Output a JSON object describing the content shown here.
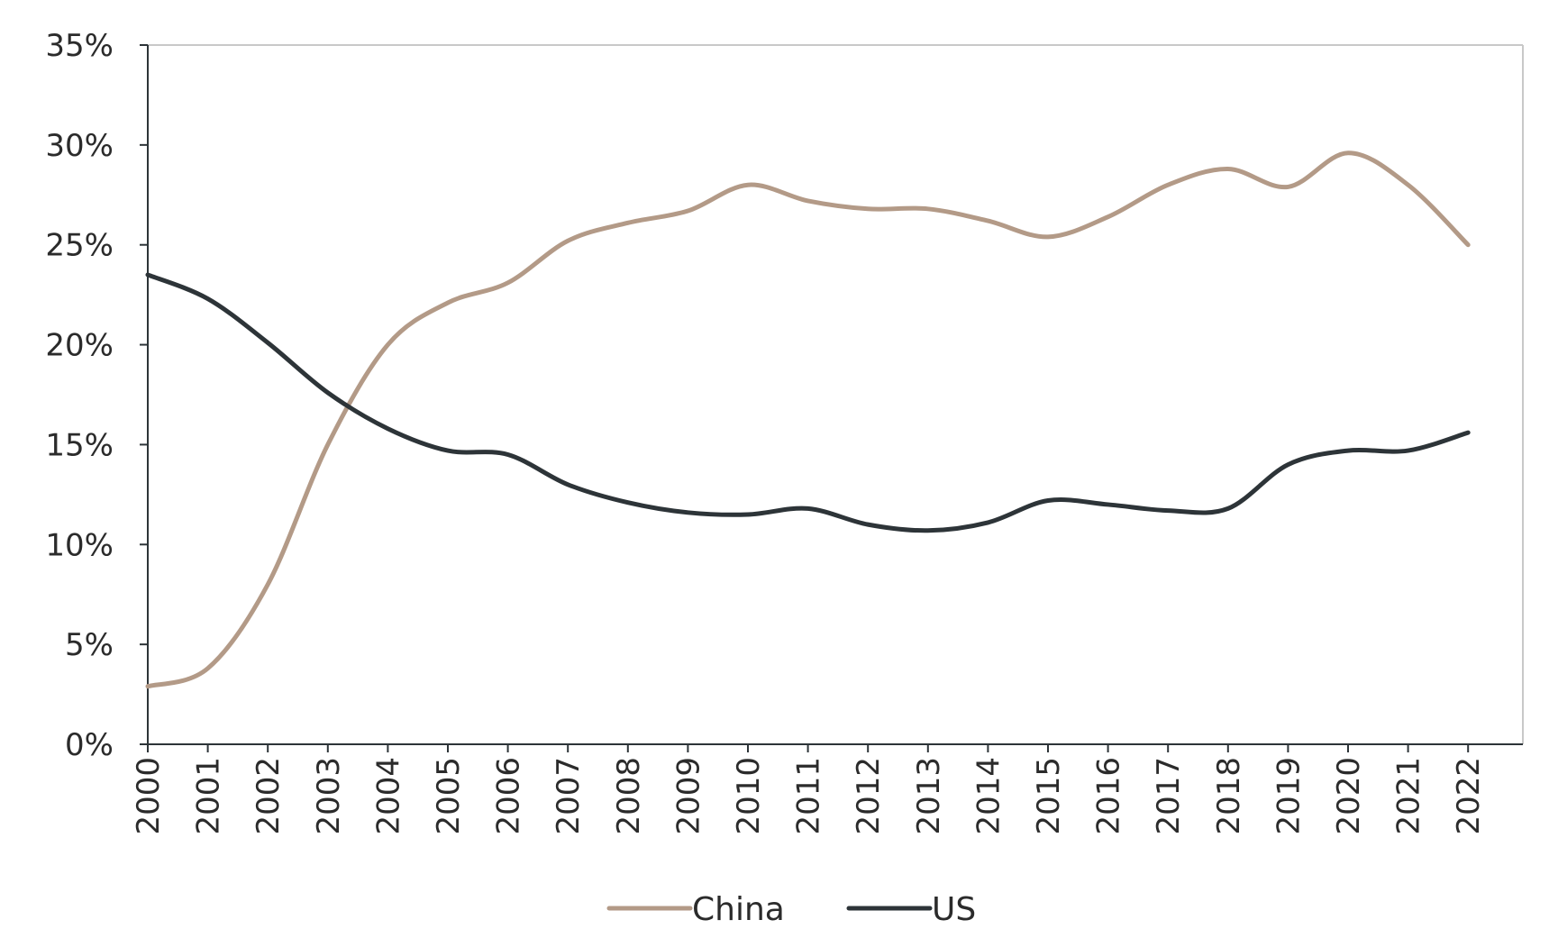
{
  "chart_data": {
    "type": "line",
    "title": "",
    "xlabel": "",
    "ylabel": "",
    "x": [
      "2000",
      "2001",
      "2002",
      "2003",
      "2004",
      "2005",
      "2006",
      "2007",
      "2008",
      "2009",
      "2010",
      "2011",
      "2012",
      "2013",
      "2014",
      "2015",
      "2016",
      "2017",
      "2018",
      "2019",
      "2020",
      "2021",
      "2022"
    ],
    "ylim": [
      0,
      35
    ],
    "y_ticks": [
      0,
      5,
      10,
      15,
      20,
      25,
      30,
      35
    ],
    "y_tick_labels": [
      "0%",
      "5%",
      "10%",
      "15%",
      "20%",
      "25%",
      "30%",
      "35%"
    ],
    "series": [
      {
        "name": "China",
        "color": "#b39a87",
        "values": [
          2.9,
          3.8,
          8.0,
          15.0,
          20.0,
          22.1,
          23.1,
          25.2,
          26.1,
          26.7,
          28.0,
          27.2,
          26.8,
          26.8,
          26.2,
          25.4,
          26.4,
          28.0,
          28.8,
          27.9,
          29.6,
          28.0,
          25.0
        ]
      },
      {
        "name": "US",
        "color": "#2d3438",
        "values": [
          23.5,
          22.3,
          20.1,
          17.6,
          15.8,
          14.7,
          14.5,
          13.0,
          12.1,
          11.6,
          11.5,
          11.8,
          11.0,
          10.7,
          11.1,
          12.2,
          12.0,
          11.7,
          11.8,
          14.0,
          14.7,
          14.7,
          15.6
        ]
      }
    ],
    "grid": false,
    "legend_position": "bottom-center"
  }
}
